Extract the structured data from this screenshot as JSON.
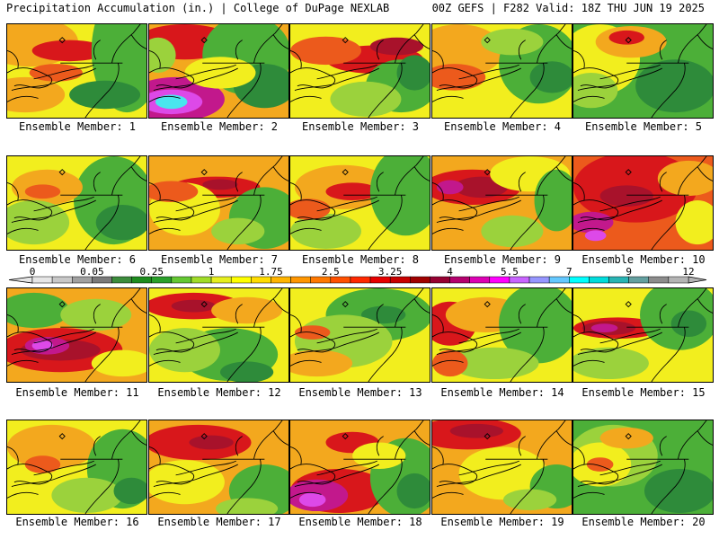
{
  "header": {
    "left": "Precipitation Accumulation (in.) | College of DuPage NEXLAB",
    "right": "00Z GEFS | F282 Valid: 18Z THU JUN 19 2025"
  },
  "panel_label_prefix": "Ensemble Member: ",
  "members": [
    1,
    2,
    3,
    4,
    5,
    6,
    7,
    8,
    9,
    10,
    11,
    12,
    13,
    14,
    15,
    16,
    17,
    18,
    19,
    20
  ],
  "colorbar": {
    "tick_labels": [
      "0",
      "0.05",
      "0.25",
      "1",
      "1.75",
      "2.5",
      "3.25",
      "4",
      "5.5",
      "7",
      "9",
      "12"
    ],
    "colors": [
      "#e6e6e6",
      "#c8c8c8",
      "#a0a0a0",
      "#7a7a7a",
      "#3c8c3c",
      "#1e8c1e",
      "#2aa02a",
      "#64c832",
      "#a0dc28",
      "#e6ef1e",
      "#ffff00",
      "#ffdc00",
      "#ffb400",
      "#ff9600",
      "#ff7800",
      "#ff5000",
      "#ff2800",
      "#e60000",
      "#c80000",
      "#a00000",
      "#960032",
      "#b4006e",
      "#dc00b4",
      "#ff00ff",
      "#c864ff",
      "#9696ff",
      "#64c8ff",
      "#00ffff",
      "#00dcdc",
      "#28b4b4",
      "#64a0a0",
      "#8c8c8c",
      "#b4b4b4"
    ]
  },
  "palette": {
    "green_dark": "#2e8b3a",
    "green": "#4caf38",
    "lime": "#9bd23c",
    "yellow": "#f2ee1e",
    "orange": "#f3a81e",
    "red_orange": "#ec5a1c",
    "red": "#d8171b",
    "dark_red": "#a8122b",
    "magenta": "#c2188c",
    "violet": "#dd49e8",
    "cyan": "#49e6ee"
  },
  "member_fields": [
    {
      "base": "yellow",
      "blobs": [
        [
          "orange",
          25,
          20,
          55,
          28
        ],
        [
          "red",
          70,
          30,
          42,
          12
        ],
        [
          "green",
          135,
          30,
          40,
          70
        ],
        [
          "green_dark",
          110,
          80,
          40,
          16
        ],
        [
          "orange",
          20,
          80,
          45,
          20
        ],
        [
          "red_orange",
          55,
          55,
          30,
          10
        ]
      ]
    },
    {
      "base": "orange",
      "blobs": [
        [
          "red",
          40,
          20,
          55,
          20
        ],
        [
          "green",
          110,
          35,
          50,
          45
        ],
        [
          "green_dark",
          130,
          70,
          35,
          25
        ],
        [
          "magenta",
          30,
          85,
          55,
          25
        ],
        [
          "violet",
          25,
          88,
          35,
          14
        ],
        [
          "cyan",
          25,
          88,
          18,
          8
        ],
        [
          "lime",
          10,
          35,
          20,
          20
        ],
        [
          "yellow",
          80,
          55,
          40,
          18
        ]
      ]
    },
    {
      "base": "yellow",
      "blobs": [
        [
          "red",
          95,
          40,
          55,
          16
        ],
        [
          "dark_red",
          120,
          25,
          30,
          10
        ],
        [
          "red_orange",
          40,
          30,
          40,
          16
        ],
        [
          "green",
          125,
          70,
          40,
          30
        ],
        [
          "lime",
          85,
          85,
          40,
          20
        ],
        [
          "green_dark",
          140,
          55,
          20,
          20
        ]
      ]
    },
    {
      "base": "yellow",
      "blobs": [
        [
          "orange",
          30,
          30,
          50,
          30
        ],
        [
          "red_orange",
          25,
          60,
          35,
          15
        ],
        [
          "green",
          120,
          45,
          45,
          45
        ],
        [
          "lime",
          90,
          20,
          35,
          15
        ],
        [
          "green_dark",
          135,
          60,
          25,
          18
        ]
      ]
    },
    {
      "base": "green",
      "blobs": [
        [
          "yellow",
          30,
          40,
          45,
          40
        ],
        [
          "orange",
          65,
          20,
          40,
          18
        ],
        [
          "red",
          60,
          15,
          20,
          8
        ],
        [
          "green_dark",
          115,
          70,
          45,
          30
        ],
        [
          "lime",
          20,
          75,
          30,
          20
        ]
      ]
    },
    {
      "base": "yellow",
      "blobs": [
        [
          "green",
          120,
          50,
          45,
          50
        ],
        [
          "green_dark",
          130,
          75,
          30,
          20
        ],
        [
          "orange",
          45,
          35,
          40,
          20
        ],
        [
          "lime",
          30,
          75,
          40,
          25
        ],
        [
          "red_orange",
          40,
          40,
          20,
          8
        ]
      ]
    },
    {
      "base": "orange",
      "blobs": [
        [
          "red",
          75,
          35,
          50,
          12
        ],
        [
          "dark_red",
          80,
          32,
          20,
          6
        ],
        [
          "yellow",
          40,
          60,
          40,
          30
        ],
        [
          "green",
          130,
          70,
          40,
          35
        ],
        [
          "red_orange",
          25,
          40,
          30,
          12
        ],
        [
          "lime",
          100,
          85,
          30,
          15
        ]
      ]
    },
    {
      "base": "yellow",
      "blobs": [
        [
          "orange",
          60,
          35,
          55,
          25
        ],
        [
          "red",
          70,
          40,
          30,
          10
        ],
        [
          "green",
          130,
          40,
          40,
          50
        ],
        [
          "lime",
          40,
          85,
          40,
          20
        ],
        [
          "red_orange",
          20,
          60,
          25,
          12
        ]
      ]
    },
    {
      "base": "orange",
      "blobs": [
        [
          "red",
          45,
          35,
          55,
          20
        ],
        [
          "dark_red",
          55,
          35,
          30,
          12
        ],
        [
          "magenta",
          20,
          35,
          15,
          8
        ],
        [
          "yellow",
          110,
          20,
          45,
          20
        ],
        [
          "green",
          140,
          50,
          25,
          35
        ],
        [
          "lime",
          90,
          85,
          35,
          18
        ]
      ]
    },
    {
      "base": "red_orange",
      "blobs": [
        [
          "red",
          70,
          35,
          70,
          40
        ],
        [
          "dark_red",
          60,
          45,
          30,
          12
        ],
        [
          "magenta",
          20,
          75,
          25,
          12
        ],
        [
          "violet",
          25,
          90,
          12,
          6
        ],
        [
          "orange",
          130,
          25,
          35,
          20
        ],
        [
          "yellow",
          140,
          75,
          25,
          25
        ]
      ]
    },
    {
      "base": "orange",
      "blobs": [
        [
          "red",
          60,
          70,
          70,
          25
        ],
        [
          "dark_red",
          60,
          70,
          45,
          12
        ],
        [
          "magenta",
          45,
          65,
          25,
          10
        ],
        [
          "violet",
          40,
          65,
          12,
          6
        ],
        [
          "green",
          30,
          25,
          40,
          20
        ],
        [
          "lime",
          100,
          30,
          40,
          18
        ],
        [
          "yellow",
          130,
          85,
          35,
          15
        ]
      ]
    },
    {
      "base": "yellow",
      "blobs": [
        [
          "red",
          50,
          20,
          55,
          15
        ],
        [
          "dark_red",
          50,
          20,
          25,
          7
        ],
        [
          "orange",
          110,
          25,
          40,
          15
        ],
        [
          "green",
          90,
          75,
          55,
          30
        ],
        [
          "lime",
          40,
          70,
          40,
          25
        ],
        [
          "green_dark",
          110,
          95,
          30,
          12
        ]
      ]
    },
    {
      "base": "yellow",
      "blobs": [
        [
          "green",
          100,
          30,
          60,
          30
        ],
        [
          "green_dark",
          105,
          30,
          25,
          10
        ],
        [
          "lime",
          60,
          60,
          55,
          30
        ],
        [
          "orange",
          30,
          85,
          40,
          15
        ],
        [
          "red_orange",
          25,
          50,
          20,
          8
        ]
      ]
    },
    {
      "base": "yellow",
      "blobs": [
        [
          "red",
          20,
          40,
          30,
          25
        ],
        [
          "orange",
          60,
          30,
          45,
          20
        ],
        [
          "green",
          120,
          40,
          45,
          45
        ],
        [
          "lime",
          70,
          85,
          50,
          18
        ],
        [
          "red_orange",
          20,
          85,
          20,
          15
        ]
      ]
    },
    {
      "base": "yellow",
      "blobs": [
        [
          "red",
          50,
          45,
          50,
          12
        ],
        [
          "dark_red",
          40,
          45,
          30,
          8
        ],
        [
          "magenta",
          35,
          45,
          15,
          5
        ],
        [
          "green",
          120,
          30,
          45,
          40
        ],
        [
          "green_dark",
          130,
          40,
          20,
          15
        ],
        [
          "lime",
          40,
          85,
          45,
          18
        ]
      ]
    },
    {
      "base": "yellow",
      "blobs": [
        [
          "orange",
          50,
          30,
          50,
          25
        ],
        [
          "red_orange",
          40,
          50,
          20,
          10
        ],
        [
          "green",
          130,
          55,
          40,
          45
        ],
        [
          "lime",
          90,
          85,
          40,
          20
        ],
        [
          "green_dark",
          140,
          80,
          20,
          15
        ]
      ]
    },
    {
      "base": "orange",
      "blobs": [
        [
          "red",
          55,
          25,
          60,
          20
        ],
        [
          "dark_red",
          70,
          25,
          25,
          8
        ],
        [
          "yellow",
          40,
          70,
          45,
          25
        ],
        [
          "green",
          130,
          80,
          40,
          30
        ],
        [
          "lime",
          110,
          100,
          35,
          12
        ]
      ]
    },
    {
      "base": "orange",
      "blobs": [
        [
          "red",
          55,
          80,
          55,
          25
        ],
        [
          "magenta",
          30,
          85,
          35,
          18
        ],
        [
          "violet",
          25,
          90,
          15,
          8
        ],
        [
          "red",
          70,
          25,
          30,
          12
        ],
        [
          "green",
          130,
          65,
          40,
          45
        ],
        [
          "green_dark",
          140,
          80,
          20,
          20
        ],
        [
          "yellow",
          100,
          40,
          30,
          15
        ]
      ]
    },
    {
      "base": "orange",
      "blobs": [
        [
          "red",
          40,
          15,
          60,
          18
        ],
        [
          "dark_red",
          50,
          12,
          30,
          8
        ],
        [
          "yellow",
          80,
          60,
          50,
          30
        ],
        [
          "green",
          140,
          75,
          30,
          25
        ],
        [
          "lime",
          110,
          90,
          30,
          12
        ]
      ]
    },
    {
      "base": "green",
      "blobs": [
        [
          "lime",
          45,
          40,
          50,
          35
        ],
        [
          "yellow",
          30,
          50,
          35,
          25
        ],
        [
          "orange",
          60,
          20,
          30,
          12
        ],
        [
          "green_dark",
          120,
          80,
          40,
          25
        ],
        [
          "red_orange",
          30,
          50,
          15,
          8
        ]
      ]
    }
  ]
}
